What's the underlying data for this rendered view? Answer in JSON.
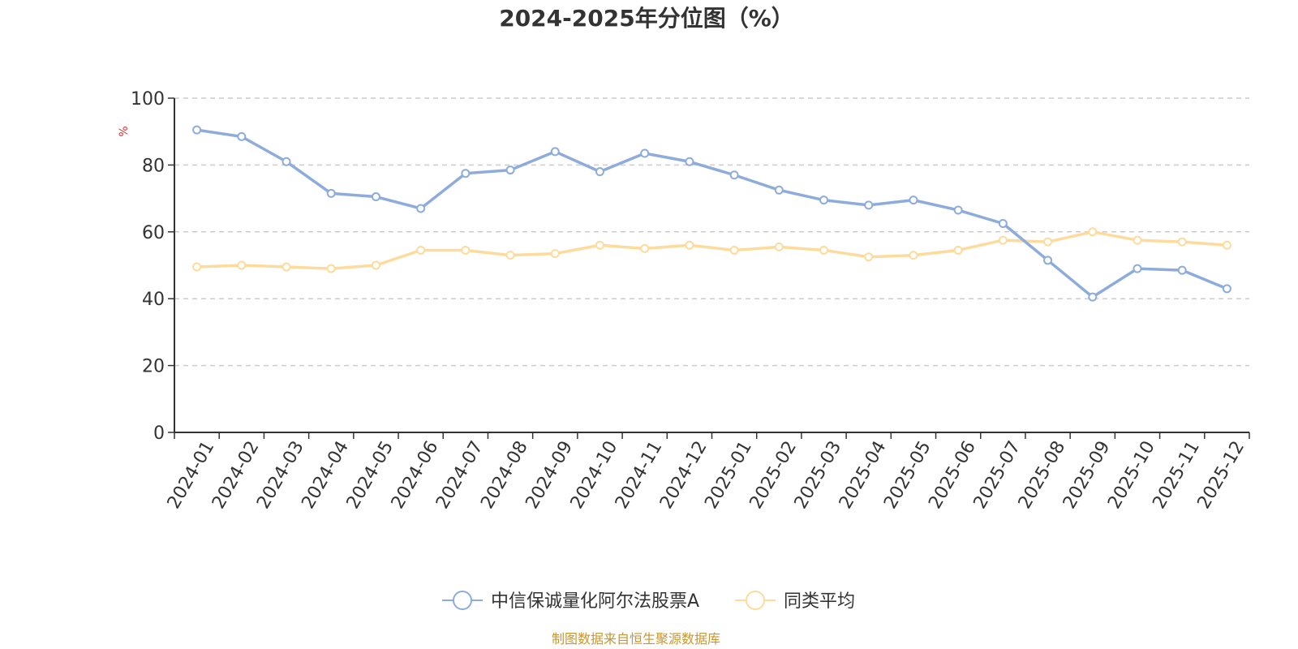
{
  "chart_data": {
    "type": "line",
    "title": "2024-2025年分位图（%）",
    "y_unit": "%",
    "ylim": [
      0,
      100
    ],
    "yticks": [
      0,
      20,
      40,
      60,
      80,
      100
    ],
    "grid": true,
    "legend_position": "bottom-center",
    "categories": [
      "2024-01",
      "2024-02",
      "2024-03",
      "2024-04",
      "2024-05",
      "2024-06",
      "2024-07",
      "2024-08",
      "2024-09",
      "2024-10",
      "2024-11",
      "2024-12",
      "2025-01",
      "2025-02",
      "2025-03",
      "2025-04",
      "2025-05",
      "2025-06",
      "2025-07",
      "2025-08",
      "2025-09",
      "2025-10",
      "2025-11",
      "2025-12"
    ],
    "series": [
      {
        "name": "中信保诚量化阿尔法股票A",
        "color": "#8eacdb",
        "values": [
          90.5,
          88.5,
          81,
          71.5,
          70.5,
          67,
          77.5,
          78.5,
          84,
          78,
          83.5,
          81,
          77,
          72.5,
          69.5,
          68,
          69.5,
          66.5,
          62.5,
          51.5,
          40.5,
          49,
          48.5,
          43
        ]
      },
      {
        "name": "同类平均",
        "color": "#fddb9c",
        "values": [
          49.5,
          50,
          49.5,
          49,
          50,
          54.5,
          54.5,
          53,
          53.5,
          56,
          55,
          56,
          54.5,
          55.5,
          54.5,
          52.5,
          53,
          54.5,
          57.5,
          57,
          60,
          57.5,
          57,
          56
        ]
      }
    ]
  },
  "source_text": "制图数据来自恒生聚源数据库",
  "colors": {
    "unit_label": "#e03030",
    "source_text": "#c8962e",
    "axis": "#333333",
    "grid": "#cccccc"
  }
}
